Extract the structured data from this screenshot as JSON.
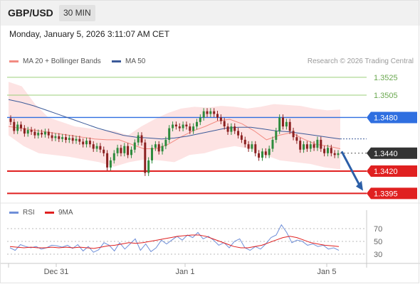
{
  "header": {
    "pair": "GBP/USD",
    "timeframe": "30 MIN",
    "datetime": "Monday, January 5, 2026 3:11:07 AM CET"
  },
  "legend": {
    "ma20_label": "MA 20 + Bollinger Bands",
    "ma50_label": "MA 50",
    "rsi_label": "RSI",
    "rsi_ma_label": "9MA",
    "credit": "Research © 2026 Trading Central"
  },
  "colors": {
    "ma20": "#f28b82",
    "bb_fill": "#fde3e3",
    "ma50": "#3c5a99",
    "candle_up": "#2e8b3d",
    "candle_down": "#8b2020",
    "resistance": "#9bcf7a",
    "pivot": "#2f6fe0",
    "support": "#e02020",
    "current": "#333333",
    "arrow": "#2c5fa8",
    "rsi": "#6f8fd8",
    "rsi_ma": "#e02020"
  },
  "chart_data": [
    {
      "type": "candlestick",
      "title": "GBP/USD",
      "x_tick_labels": [
        "Dec 31",
        "Jan 1",
        "Jan 5"
      ],
      "y_range": [
        1.3385,
        1.354
      ],
      "levels": [
        {
          "value": 1.3525,
          "label": "1.3525",
          "kind": "resistance"
        },
        {
          "value": 1.3505,
          "label": "1.3505",
          "kind": "resistance"
        },
        {
          "value": 1.348,
          "label": "1.3480",
          "kind": "pivot"
        },
        {
          "value": 1.344,
          "label": "1.3440",
          "kind": "current"
        },
        {
          "value": 1.342,
          "label": "1.3420",
          "kind": "support"
        },
        {
          "value": 1.3395,
          "label": "1.3395",
          "kind": "support"
        }
      ],
      "candles_close": [
        1.3475,
        1.3465,
        1.3472,
        1.3468,
        1.3462,
        1.3466,
        1.3464,
        1.346,
        1.3463,
        1.3461,
        1.3464,
        1.346,
        1.3457,
        1.3459,
        1.3456,
        1.3458,
        1.3455,
        1.3457,
        1.3454,
        1.3456,
        1.3453,
        1.345,
        1.3454,
        1.345,
        1.3445,
        1.3448,
        1.3444,
        1.344,
        1.3424,
        1.3432,
        1.344,
        1.3446,
        1.344,
        1.3448,
        1.3438,
        1.3444,
        1.3452,
        1.346,
        1.3452,
        1.3418,
        1.3432,
        1.3446,
        1.345,
        1.3442,
        1.3448,
        1.3455,
        1.3468,
        1.3472,
        1.347,
        1.3468,
        1.3472,
        1.347,
        1.3465,
        1.347,
        1.3475,
        1.348,
        1.3487,
        1.3484,
        1.3487,
        1.3484,
        1.348,
        1.3476,
        1.347,
        1.3464,
        1.347,
        1.3465,
        1.346,
        1.3455,
        1.345,
        1.3445,
        1.345,
        1.344,
        1.3435,
        1.3442,
        1.3438,
        1.3445,
        1.3455,
        1.3465,
        1.348,
        1.347,
        1.3475,
        1.3465,
        1.3458,
        1.3454,
        1.3444,
        1.345,
        1.3445,
        1.345,
        1.3446,
        1.3455,
        1.3445,
        1.344,
        1.3446,
        1.344,
        1.3438,
        1.344
      ],
      "ma20": [
        1.347,
        1.3468,
        1.3466,
        1.3464,
        1.3462,
        1.346,
        1.3458,
        1.3456,
        1.3455,
        1.3455,
        1.345,
        1.3445,
        1.3445,
        1.345,
        1.3458,
        1.3465,
        1.347,
        1.3476,
        1.3478,
        1.3473,
        1.3465,
        1.3455,
        1.346,
        1.3463,
        1.3456,
        1.345,
        1.3448,
        1.3445
      ],
      "ma50": [
        1.35,
        1.3497,
        1.3493,
        1.3488,
        1.3483,
        1.3478,
        1.3473,
        1.3468,
        1.3464,
        1.346,
        1.3458,
        1.3457,
        1.3456,
        1.3457,
        1.3459,
        1.3462,
        1.3465,
        1.3468,
        1.3469,
        1.3469,
        1.3467,
        1.3465,
        1.3464,
        1.3462,
        1.346,
        1.3458,
        1.3456
      ],
      "bb_upper": [
        1.352,
        1.3515,
        1.3495,
        1.348,
        1.3475,
        1.347,
        1.3468,
        1.3466,
        1.3465,
        1.346,
        1.347,
        1.3478,
        1.3485,
        1.349,
        1.3492,
        1.3491,
        1.3493,
        1.3492,
        1.349,
        1.3492,
        1.3495,
        1.3494,
        1.3493,
        1.349,
        1.3488,
        1.3489
      ],
      "bb_lower": [
        1.346,
        1.3448,
        1.344,
        1.3438,
        1.3436,
        1.3433,
        1.343,
        1.3425,
        1.343,
        1.3433,
        1.3432,
        1.343,
        1.3438,
        1.344,
        1.3445,
        1.3448,
        1.3445,
        1.3438,
        1.3432,
        1.343,
        1.3428,
        1.3424,
        1.3422
      ],
      "projection": {
        "from": 1.3442,
        "to": 1.3398
      }
    },
    {
      "type": "line",
      "title": "RSI",
      "y_tick_labels": [
        "70",
        "50",
        "30"
      ],
      "y_ticks": [
        70,
        50,
        30
      ],
      "series": [
        {
          "name": "RSI",
          "values": [
            40,
            36,
            45,
            42,
            40,
            42,
            38,
            40,
            44,
            43,
            41,
            44,
            39,
            45,
            35,
            42,
            33,
            37,
            48,
            44,
            35,
            48,
            38,
            46,
            54,
            36,
            46,
            34,
            40,
            52,
            46,
            52,
            58,
            52,
            60,
            56,
            64,
            54,
            58,
            52,
            44,
            48,
            40,
            50,
            54,
            40,
            36,
            42,
            38,
            46,
            56,
            60,
            76,
            64,
            48,
            52,
            50,
            44,
            46,
            42,
            44,
            38,
            40,
            36
          ]
        },
        {
          "name": "9MA",
          "values": [
            42,
            41,
            40,
            41,
            40,
            40,
            41,
            40,
            41,
            40,
            41,
            40,
            39,
            41,
            43,
            44,
            46,
            48,
            47,
            48,
            50,
            52,
            54,
            56,
            58,
            59,
            60,
            60,
            58,
            54,
            50,
            46,
            42,
            40,
            40,
            42,
            44,
            48,
            52,
            56,
            58,
            56,
            52,
            48,
            46,
            44,
            43,
            42
          ]
        }
      ]
    }
  ]
}
